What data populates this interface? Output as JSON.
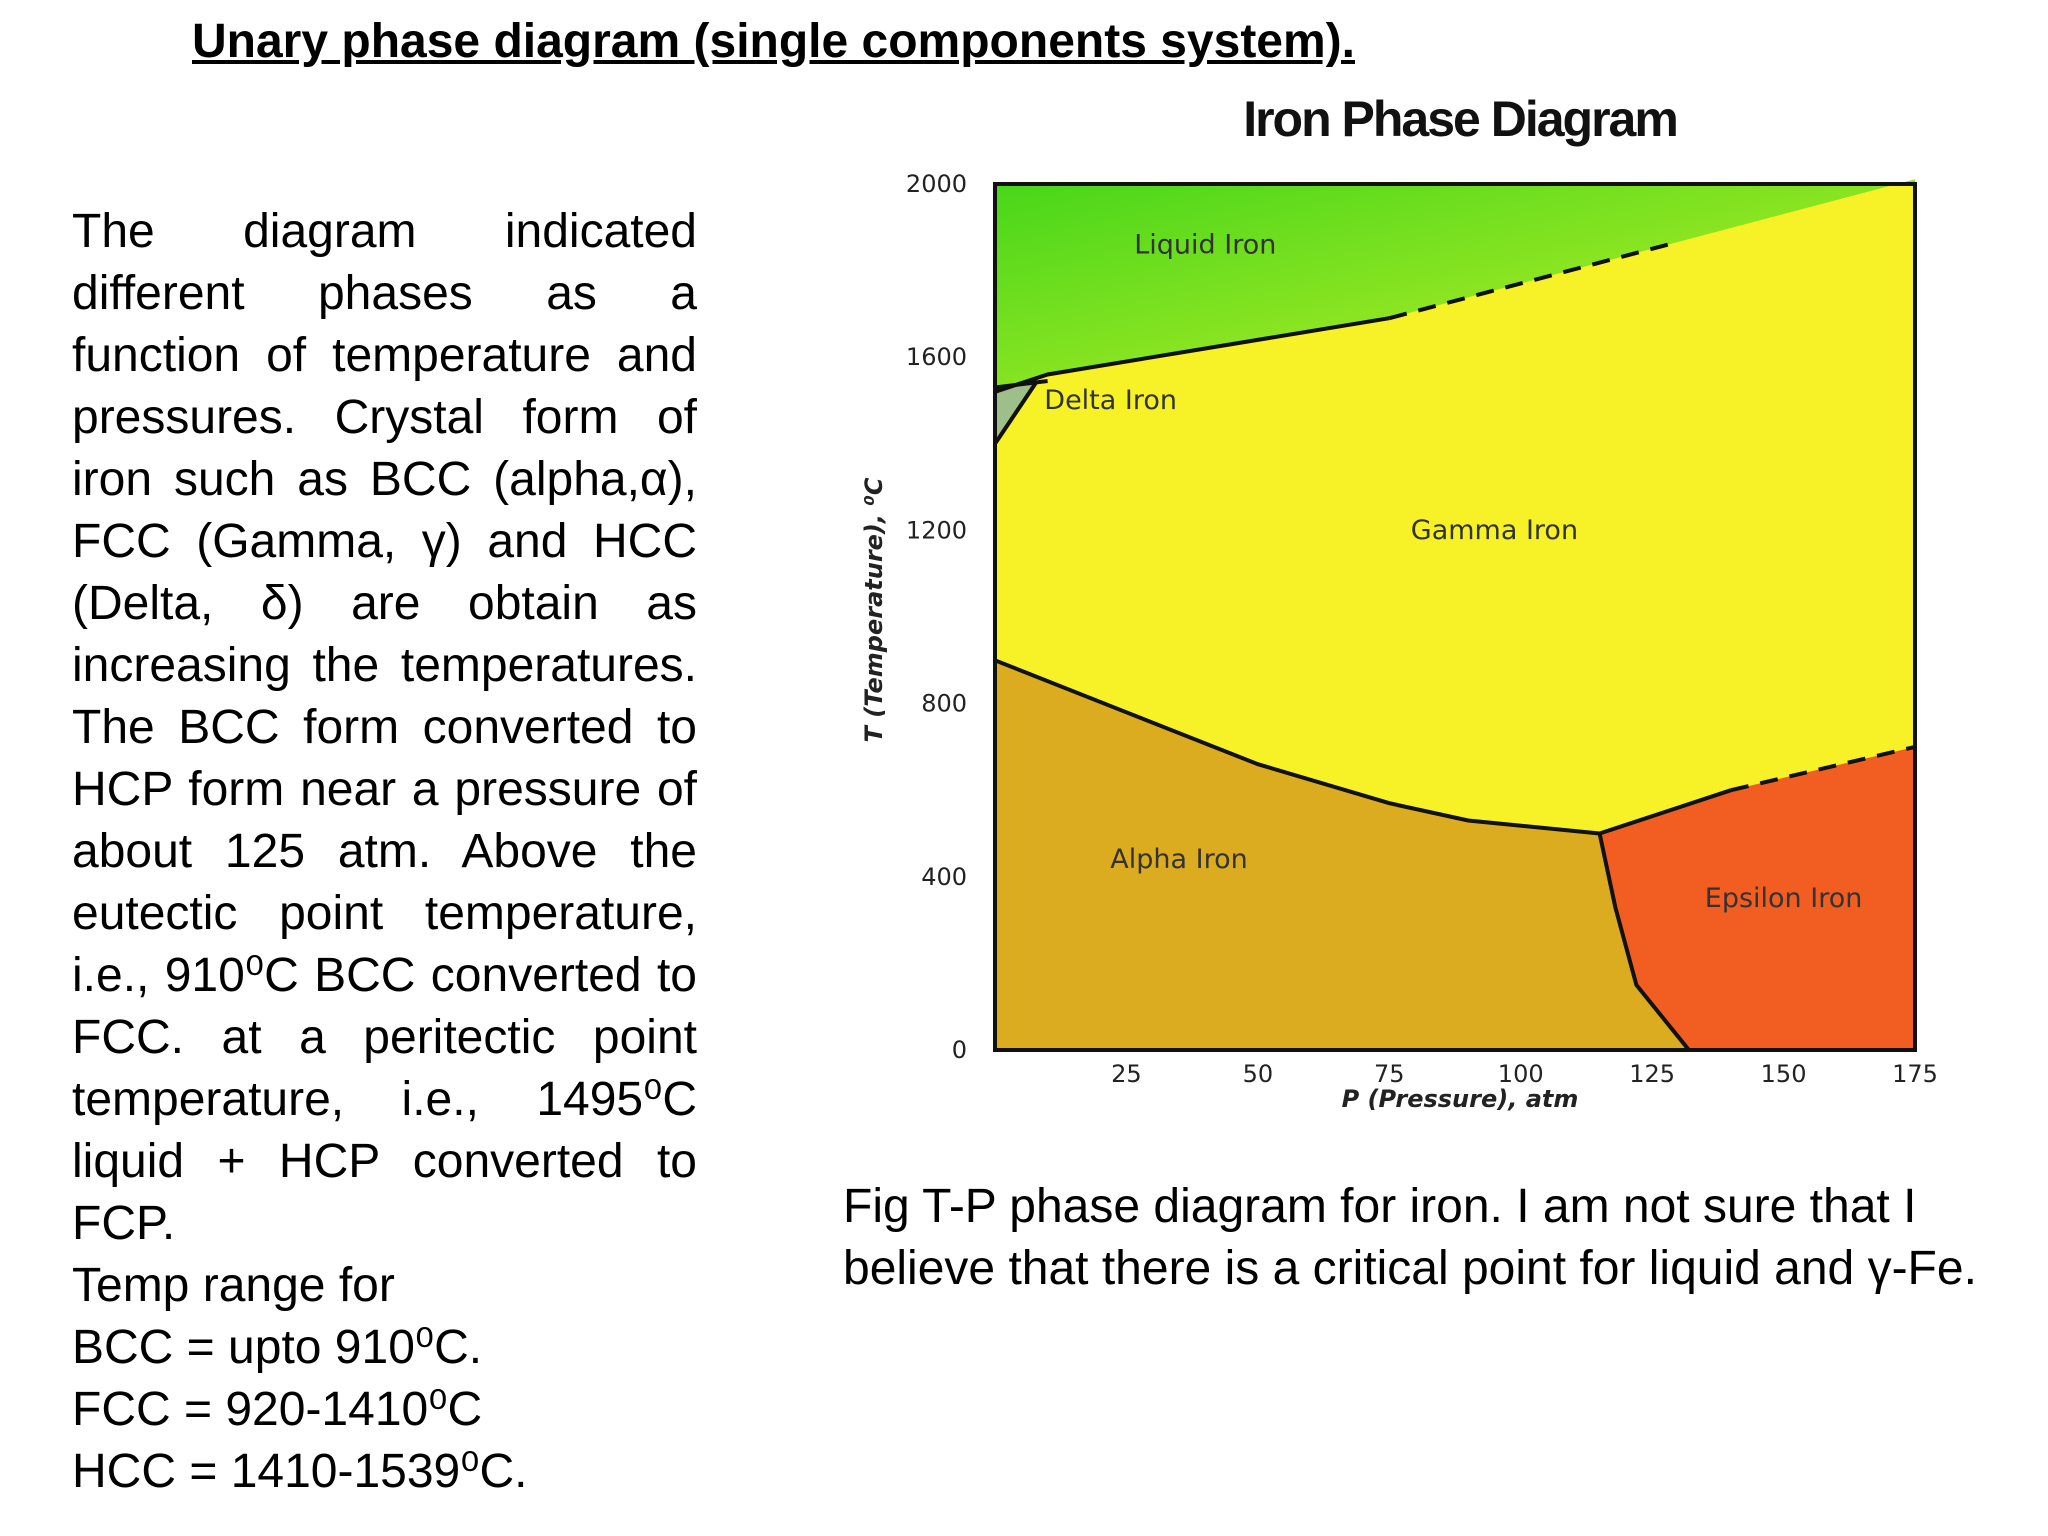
{
  "page": {
    "title": "Unary phase diagram (single components system).",
    "body_text": "The diagram indicated different phases as a function of temperature and pressures. Crystal form of iron such as BCC (alpha,α), FCC (Gamma, γ) and HCC (Delta, δ) are obtain as increasing the temperatures. The BCC form converted to HCP form near a pressure of about 125 atm. Above the eutectic point temperature, i.e., 910⁰C BCC converted to FCC. at a peritectic point temperature, i.e., 1495⁰C liquid + HCP converted to FCP.",
    "temp_range": [
      "Temp range for",
      "BCC = upto 910⁰C.",
      "FCC = 920-1410⁰C",
      "HCC = 1410-1539⁰C."
    ],
    "caption": "Fig T-P phase diagram for iron. I am not sure that I believe that there is a critical point for liquid and γ-Fe."
  },
  "chart_data": {
    "type": "area",
    "title": "Iron Phase Diagram",
    "xlabel": "P (Pressure), atm",
    "ylabel": "T (Temperature), ⁰C",
    "xlim": [
      0,
      175
    ],
    "ylim": [
      0,
      2000
    ],
    "x_ticks": [
      "25",
      "50",
      "75",
      "100",
      "125",
      "150",
      "175"
    ],
    "y_ticks": [
      "0",
      "400",
      "800",
      "1200",
      "1600",
      "2000"
    ],
    "regions": [
      {
        "name": "Liquid Iron",
        "color": "#5ee61c"
      },
      {
        "name": "Delta Iron",
        "color": "#9fbf8a"
      },
      {
        "name": "Gamma Iron",
        "color": "#f7f128"
      },
      {
        "name": "Alpha Iron",
        "color": "#dbac1f"
      },
      {
        "name": "Epsilon Iron",
        "color": "#f25e22"
      }
    ],
    "boundaries": [
      {
        "name": "liquid-solid",
        "style": "solid",
        "points": [
          [
            0,
            1520
          ],
          [
            10,
            1560
          ],
          [
            75,
            1690
          ]
        ]
      },
      {
        "name": "liquid-solid-extrapolated",
        "style": "dashed",
        "points": [
          [
            75,
            1690
          ],
          [
            128,
            1860
          ]
        ]
      },
      {
        "name": "delta-gamma",
        "style": "solid",
        "points": [
          [
            0,
            1400
          ],
          [
            8,
            1545
          ]
        ]
      },
      {
        "name": "delta-top",
        "style": "solid",
        "points": [
          [
            0,
            1530
          ],
          [
            10,
            1545
          ]
        ]
      },
      {
        "name": "alpha-gamma",
        "style": "solid",
        "points": [
          [
            0,
            900
          ],
          [
            25,
            780
          ],
          [
            50,
            660
          ],
          [
            75,
            570
          ],
          [
            90,
            530
          ],
          [
            115,
            500
          ]
        ]
      },
      {
        "name": "alpha-epsilon",
        "style": "solid",
        "points": [
          [
            115,
            500
          ],
          [
            118,
            330
          ],
          [
            122,
            150
          ],
          [
            132,
            0
          ]
        ]
      },
      {
        "name": "gamma-epsilon",
        "style": "solid",
        "points": [
          [
            115,
            500
          ],
          [
            140,
            600
          ]
        ]
      },
      {
        "name": "gamma-epsilon-extrapolated",
        "style": "dashed",
        "points": [
          [
            140,
            600
          ],
          [
            175,
            700
          ]
        ]
      }
    ]
  }
}
